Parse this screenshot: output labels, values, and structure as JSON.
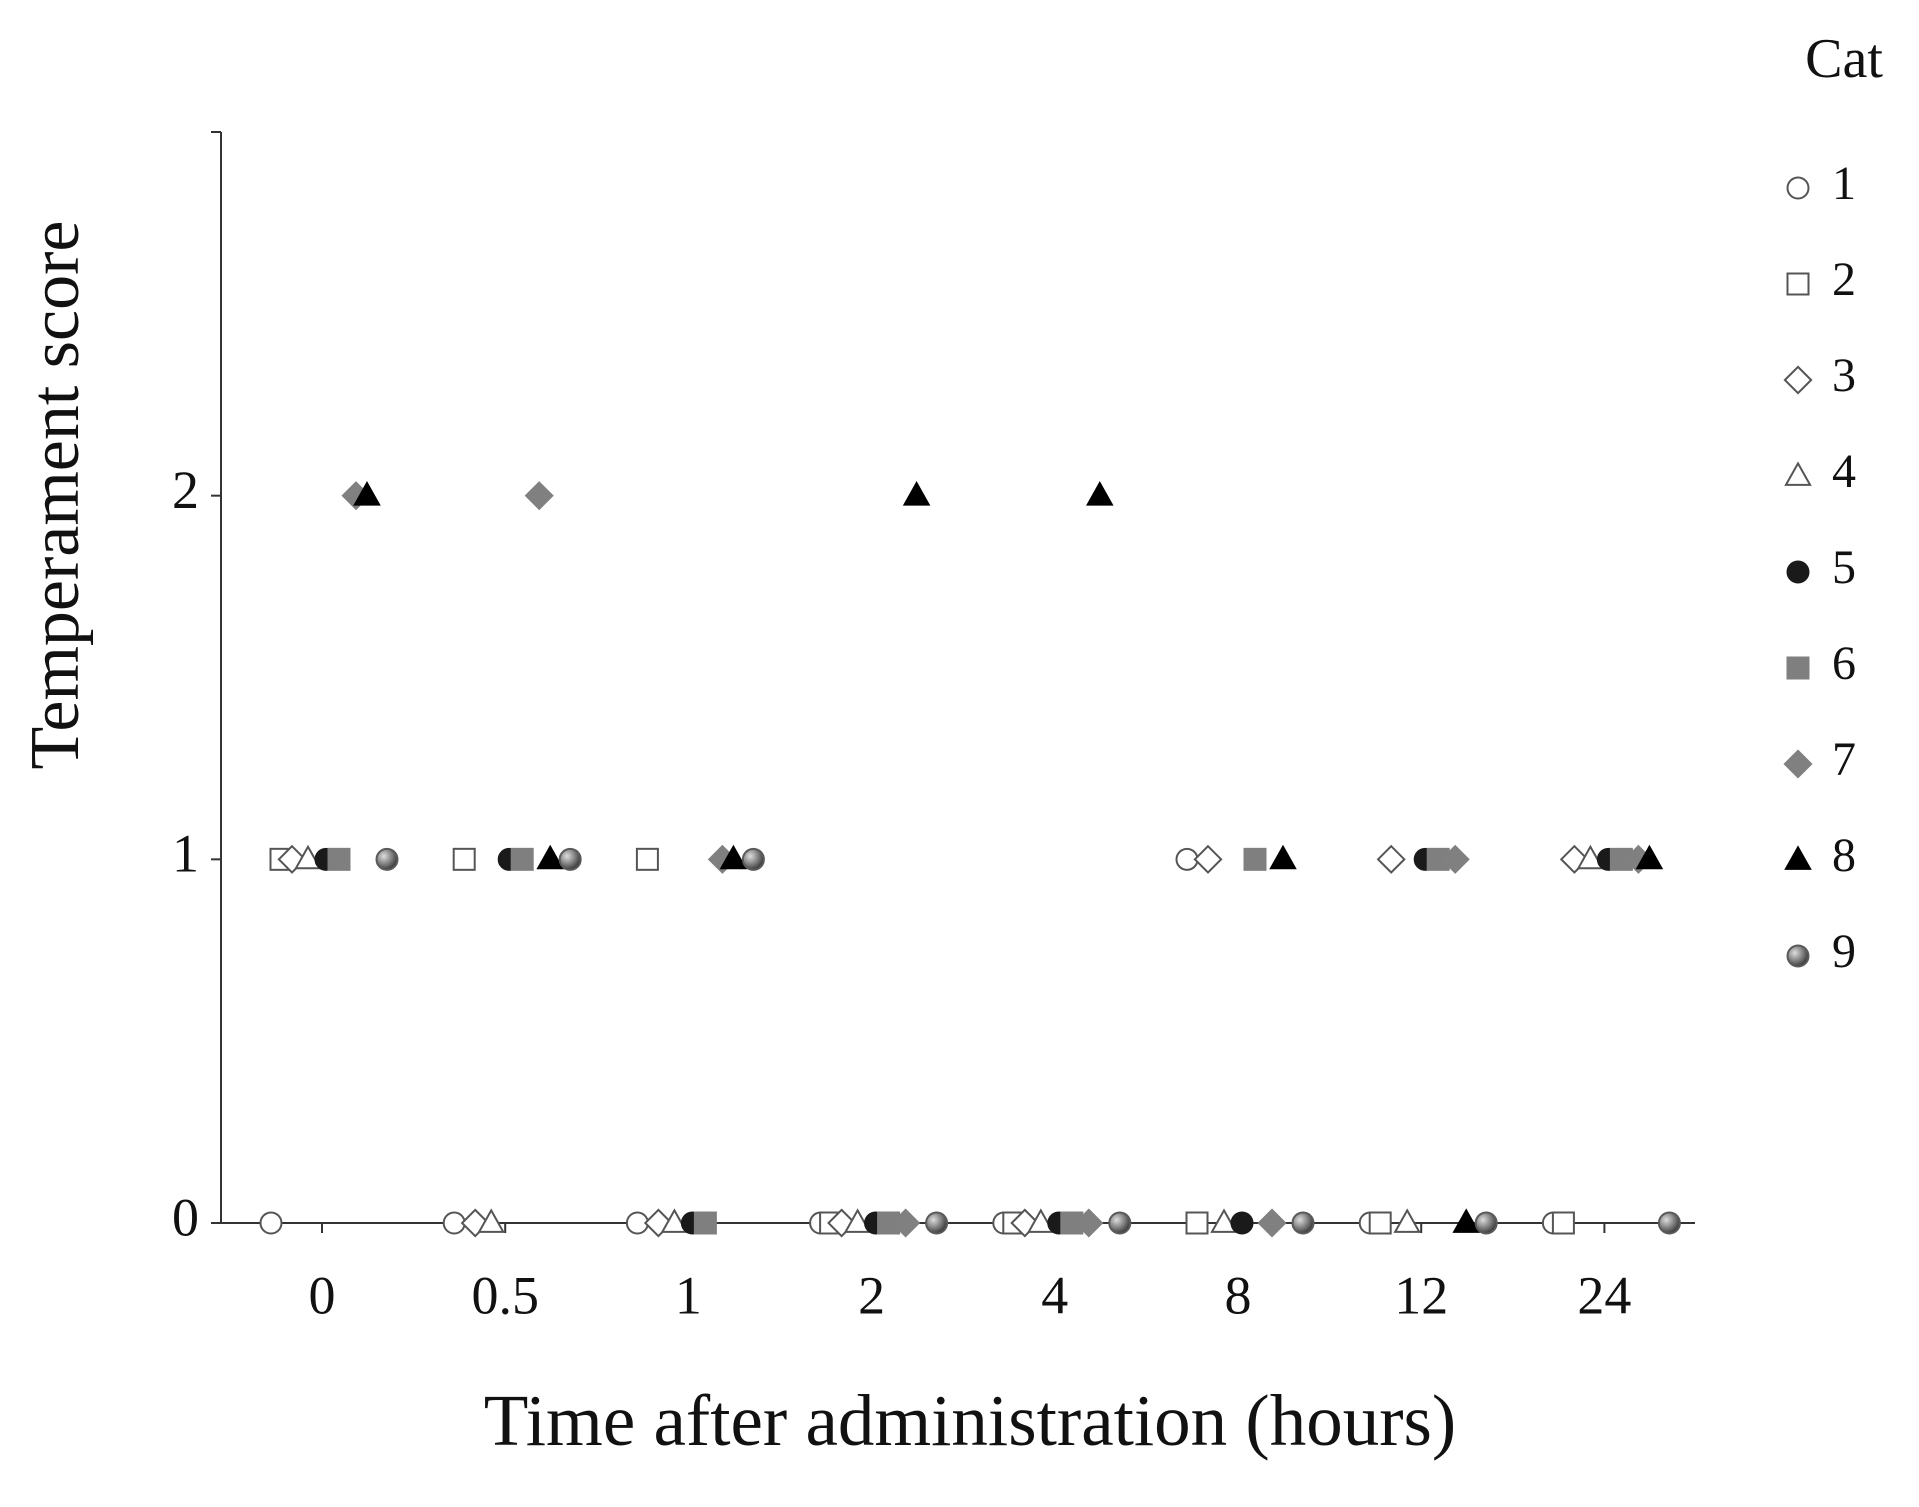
{
  "chart_data": {
    "type": "dot",
    "x_label": "Time after administration (hours)",
    "y_label": "Temperament score",
    "legend_title": "Cat",
    "legend": "right",
    "categories": [
      "0",
      "0.5",
      "1",
      "2",
      "4",
      "8",
      "12",
      "24"
    ],
    "ylim": [
      0,
      3
    ],
    "yticks": [
      0,
      1,
      2
    ],
    "series": [
      {
        "name": "1",
        "marker": "circle",
        "color": "#ffffff",
        "values": [
          0,
          0,
          0,
          0,
          0,
          1,
          0,
          0
        ]
      },
      {
        "name": "2",
        "marker": "square",
        "color": "#ffffff",
        "values": [
          1,
          1,
          1,
          0,
          0,
          0,
          0,
          0
        ]
      },
      {
        "name": "3",
        "marker": "diamond",
        "color": "#ffffff",
        "values": [
          1,
          0,
          0,
          0,
          0,
          1,
          1,
          1
        ]
      },
      {
        "name": "4",
        "marker": "triangle",
        "color": "#ffffff",
        "values": [
          1,
          0,
          0,
          0,
          0,
          0,
          0,
          1
        ]
      },
      {
        "name": "5",
        "marker": "circle",
        "color": "#1a1a1a",
        "values": [
          1,
          1,
          0,
          0,
          0,
          0,
          1,
          1
        ]
      },
      {
        "name": "6",
        "marker": "square",
        "color": "#7f7f7f",
        "values": [
          1,
          1,
          0,
          0,
          0,
          1,
          1,
          1
        ]
      },
      {
        "name": "7",
        "marker": "diamond",
        "color": "#808080",
        "values": [
          2,
          2,
          1,
          0,
          0,
          0,
          1,
          1
        ]
      },
      {
        "name": "8",
        "marker": "triangle",
        "color": "#000000",
        "values": [
          2,
          1,
          1,
          2,
          2,
          1,
          0,
          1
        ]
      },
      {
        "name": "9",
        "marker": "sphere",
        "color": "#5a5a5a",
        "values": [
          1,
          1,
          1,
          0,
          0,
          0,
          0,
          0
        ]
      }
    ]
  }
}
